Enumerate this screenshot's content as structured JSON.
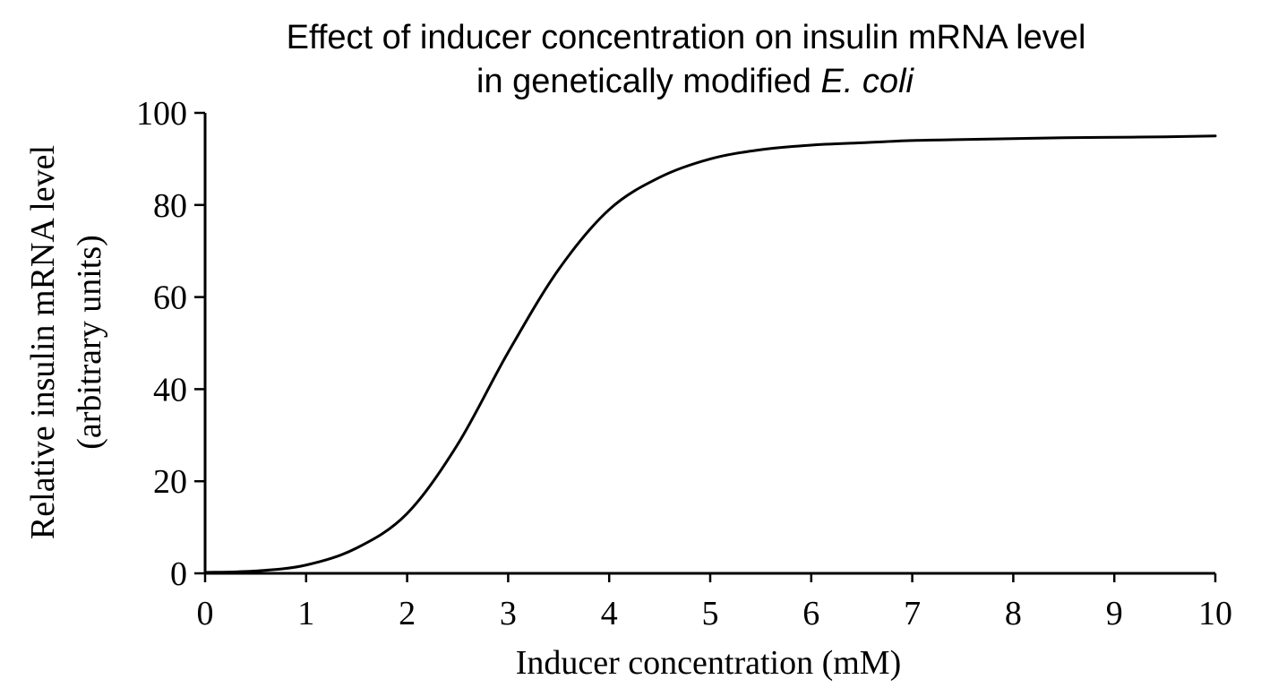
{
  "chart_data": {
    "type": "line",
    "title": "Effect of inducer concentration on insulin mRNA level",
    "subtitle_prefix": "in genetically modified ",
    "subtitle_italic": "E. coli",
    "xlabel": "Inducer concentration (mM)",
    "ylabel_line1": "Relative insulin mRNA level",
    "ylabel_line2": "(arbitrary units)",
    "xlim": [
      0,
      10
    ],
    "ylim": [
      0,
      100
    ],
    "x_ticks": [
      "0",
      "1",
      "2",
      "3",
      "4",
      "5",
      "6",
      "7",
      "8",
      "9",
      "10"
    ],
    "y_ticks": [
      "0",
      "20",
      "40",
      "60",
      "80",
      "100"
    ],
    "grid": false,
    "line_color": "#000000",
    "series": [
      {
        "x": [
          0,
          0.5,
          1,
          1.5,
          2,
          2.5,
          3,
          3.5,
          4,
          4.5,
          5,
          5.5,
          6,
          6.5,
          7,
          7.5,
          8,
          8.5,
          9,
          9.5,
          10
        ],
        "values": [
          0.2,
          0.5,
          1.8,
          5.5,
          13,
          28,
          48,
          66,
          79,
          86,
          90,
          92,
          93,
          93.5,
          94,
          94.2,
          94.4,
          94.6,
          94.7,
          94.8,
          95
        ]
      }
    ]
  }
}
